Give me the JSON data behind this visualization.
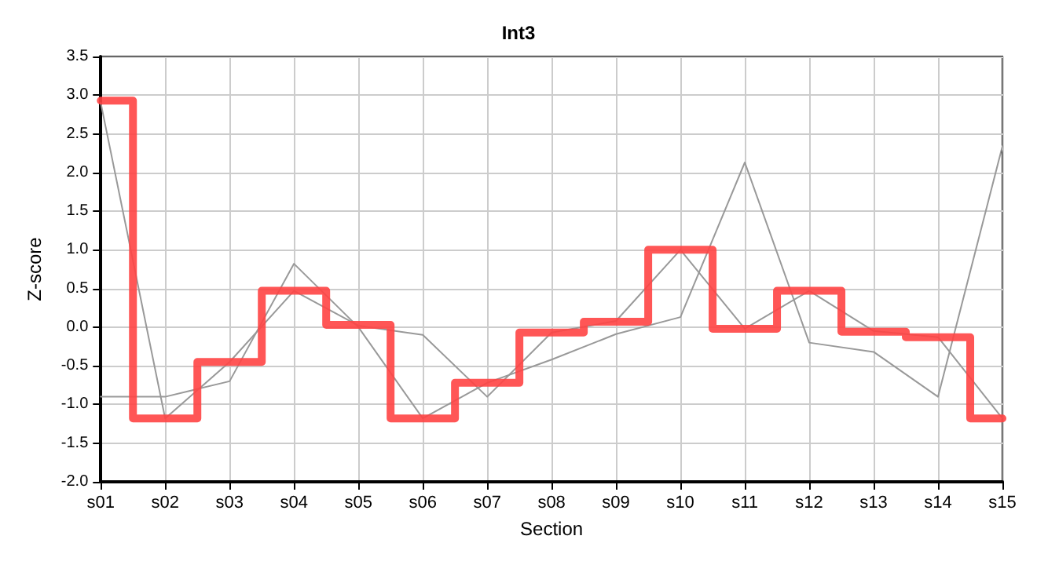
{
  "chart_data": {
    "type": "line",
    "title": "Int3",
    "xlabel": "Section",
    "ylabel": "Z-score",
    "categories": [
      "s01",
      "s02",
      "s03",
      "s04",
      "s05",
      "s06",
      "s07",
      "s08",
      "s09",
      "s10",
      "s11",
      "s12",
      "s13",
      "s14",
      "s15"
    ],
    "series": [
      {
        "color": "#999999",
        "values": [
          2.9,
          -1.18,
          -0.45,
          0.47,
          0.02,
          -0.1,
          -0.9,
          -0.07,
          0.08,
          1.0,
          -0.02,
          0.47,
          -0.05,
          -0.13,
          -1.18
        ]
      },
      {
        "color": "#999999",
        "values": [
          -0.9,
          -0.9,
          -0.7,
          0.82,
          0.0,
          -1.18,
          -0.72,
          -0.42,
          -0.09,
          0.13,
          2.13,
          -0.2,
          -0.32,
          -0.9,
          2.34
        ]
      },
      {
        "type": "step",
        "color": "#ff4444",
        "values": [
          2.93,
          -1.18,
          -0.45,
          0.47,
          0.03,
          -1.18,
          -0.72,
          -0.07,
          0.07,
          1.0,
          -0.02,
          0.47,
          -0.06,
          -0.13,
          -1.18
        ]
      }
    ],
    "ylim": [
      -2,
      3.5
    ],
    "yticks": [
      {
        "value": -2,
        "label": "-2.0"
      },
      {
        "value": -1.5,
        "label": "-1.5"
      },
      {
        "value": -1,
        "label": "-1.0"
      },
      {
        "value": -0.5,
        "label": "-0.5"
      },
      {
        "value": 0,
        "label": "0.0"
      },
      {
        "value": 0.5,
        "label": "0.5"
      },
      {
        "value": 1,
        "label": "1.0"
      },
      {
        "value": 1.5,
        "label": "1.5"
      },
      {
        "value": 2,
        "label": "2.0"
      },
      {
        "value": 2.5,
        "label": "2.5"
      },
      {
        "value": 3,
        "label": "3.0"
      },
      {
        "value": 3.5,
        "label": "3.5"
      }
    ],
    "grid": true,
    "marker": "none",
    "line_style": "solid"
  }
}
